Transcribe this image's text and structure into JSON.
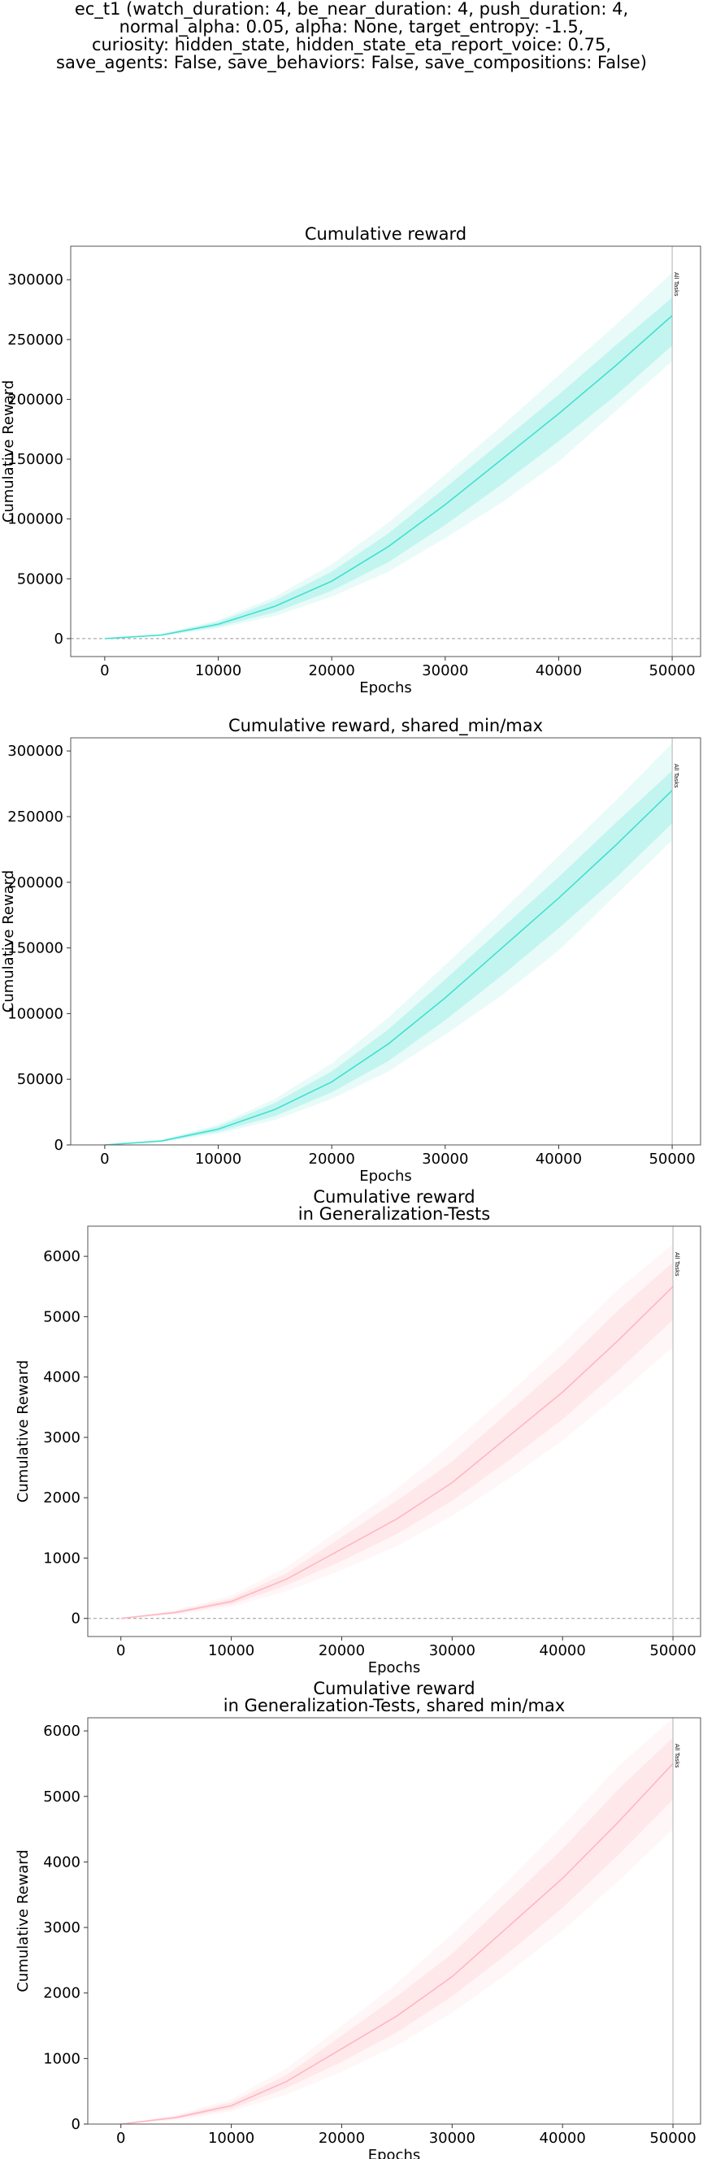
{
  "figure": {
    "suptitle_lines": [
      "ec_t1 (watch_duration: 4, be_near_duration: 4, push_duration: 4,",
      "normal_alpha: 0.05, alpha: None, target_entropy: -1.5,",
      "curiosity: hidden_state, hidden_state_eta_report_voice: 0.75,",
      "save_agents: False, save_behaviors: False, save_compositions: False)"
    ]
  },
  "chart_data": [
    {
      "type": "line",
      "title": [
        "Cumulative reward"
      ],
      "xlabel": "Epochs",
      "ylabel": "Cumulative Reward",
      "xlim": [
        -3000,
        52500
      ],
      "ylim": [
        -15000,
        328000
      ],
      "xticks": [
        0,
        10000,
        20000,
        30000,
        40000,
        50000
      ],
      "yticks": [
        0,
        50000,
        100000,
        150000,
        200000,
        250000,
        300000
      ],
      "zero_line": true,
      "color": "#40e0d0",
      "vline": {
        "x": 50000,
        "label": "All Tasks"
      },
      "series": [
        {
          "x": [
            0,
            5000,
            10000,
            15000,
            20000,
            25000,
            30000,
            35000,
            40000,
            45000,
            50000
          ],
          "values": [
            0,
            3000,
            12000,
            27000,
            48000,
            77000,
            112000,
            150000,
            188000,
            228000,
            270000
          ],
          "inner_lower": [
            0,
            2500,
            10000,
            22000,
            40000,
            64000,
            95000,
            129000,
            165000,
            203000,
            245000
          ],
          "inner_upper": [
            0,
            3500,
            14000,
            32000,
            56000,
            88000,
            126000,
            165000,
            204000,
            245000,
            285000
          ],
          "outer_lower": [
            0,
            2000,
            8500,
            19000,
            35000,
            56000,
            84000,
            114000,
            148000,
            190000,
            232000
          ],
          "outer_upper": [
            0,
            4000,
            15500,
            35000,
            62000,
            97000,
            137000,
            178000,
            220000,
            262000,
            306000
          ]
        }
      ]
    },
    {
      "type": "line",
      "title": [
        "Cumulative reward, shared_min/max"
      ],
      "xlabel": "Epochs",
      "ylabel": "Cumulative Reward",
      "xlim": [
        -3000,
        52500
      ],
      "ylim": [
        0,
        310000
      ],
      "xticks": [
        0,
        10000,
        20000,
        30000,
        40000,
        50000
      ],
      "yticks": [
        0,
        50000,
        100000,
        150000,
        200000,
        250000,
        300000
      ],
      "zero_line": false,
      "color": "#40e0d0",
      "vline": {
        "x": 50000,
        "label": "All Tasks"
      },
      "series": [
        {
          "x": [
            0,
            5000,
            10000,
            15000,
            20000,
            25000,
            30000,
            35000,
            40000,
            45000,
            50000
          ],
          "values": [
            0,
            3000,
            12000,
            27000,
            48000,
            77000,
            112000,
            150000,
            188000,
            228000,
            270000
          ],
          "inner_lower": [
            0,
            2500,
            10000,
            22000,
            40000,
            64000,
            95000,
            129000,
            165000,
            203000,
            245000
          ],
          "inner_upper": [
            0,
            3500,
            14000,
            32000,
            56000,
            88000,
            126000,
            165000,
            204000,
            245000,
            285000
          ],
          "outer_lower": [
            0,
            2000,
            8500,
            19000,
            35000,
            56000,
            84000,
            114000,
            148000,
            190000,
            232000
          ],
          "outer_upper": [
            0,
            4000,
            15500,
            35000,
            62000,
            97000,
            137000,
            178000,
            220000,
            262000,
            306000
          ]
        }
      ]
    },
    {
      "type": "line",
      "title": [
        "Cumulative reward",
        "in Generalization-Tests"
      ],
      "xlabel": "Epochs",
      "ylabel": "Cumulative Reward",
      "xlim": [
        -3000,
        52500
      ],
      "ylim": [
        -300,
        6500
      ],
      "xticks": [
        0,
        10000,
        20000,
        30000,
        40000,
        50000
      ],
      "yticks": [
        0,
        1000,
        2000,
        3000,
        4000,
        5000,
        6000
      ],
      "zero_line": true,
      "color": "#ffb6c1",
      "vline": {
        "x": 50000,
        "label": "All Tasks"
      },
      "series": [
        {
          "x": [
            0,
            5000,
            10000,
            15000,
            20000,
            25000,
            30000,
            35000,
            40000,
            45000,
            50000
          ],
          "values": [
            0,
            100,
            280,
            650,
            1150,
            1650,
            2250,
            3000,
            3750,
            4600,
            5500
          ],
          "inner_lower": [
            0,
            80,
            230,
            550,
            950,
            1400,
            1950,
            2600,
            3300,
            4100,
            4950
          ],
          "inner_upper": [
            0,
            120,
            330,
            750,
            1350,
            1950,
            2600,
            3400,
            4200,
            5100,
            5900
          ],
          "outer_lower": [
            0,
            60,
            190,
            450,
            800,
            1200,
            1700,
            2300,
            2950,
            3700,
            4500
          ],
          "outer_upper": [
            0,
            140,
            380,
            850,
            1500,
            2150,
            2900,
            3700,
            4550,
            5450,
            6200
          ]
        }
      ]
    },
    {
      "type": "line",
      "title": [
        "Cumulative reward",
        "in Generalization-Tests, shared min/max"
      ],
      "xlabel": "Epochs",
      "ylabel": "Cumulative Reward",
      "xlim": [
        -3000,
        52500
      ],
      "ylim": [
        0,
        6200
      ],
      "xticks": [
        0,
        10000,
        20000,
        30000,
        40000,
        50000
      ],
      "yticks": [
        0,
        1000,
        2000,
        3000,
        4000,
        5000,
        6000
      ],
      "zero_line": false,
      "color": "#ffb6c1",
      "vline": {
        "x": 50000,
        "label": "All Tasks"
      },
      "series": [
        {
          "x": [
            0,
            5000,
            10000,
            15000,
            20000,
            25000,
            30000,
            35000,
            40000,
            45000,
            50000
          ],
          "values": [
            0,
            100,
            280,
            650,
            1150,
            1650,
            2250,
            3000,
            3750,
            4600,
            5500
          ],
          "inner_lower": [
            0,
            80,
            230,
            550,
            950,
            1400,
            1950,
            2600,
            3300,
            4100,
            4950
          ],
          "inner_upper": [
            0,
            120,
            330,
            750,
            1350,
            1950,
            2600,
            3400,
            4200,
            5100,
            5900
          ],
          "outer_lower": [
            0,
            60,
            190,
            450,
            800,
            1200,
            1700,
            2300,
            2950,
            3700,
            4500
          ],
          "outer_upper": [
            0,
            140,
            380,
            850,
            1500,
            2150,
            2900,
            3700,
            4550,
            5450,
            6200
          ]
        }
      ]
    }
  ]
}
